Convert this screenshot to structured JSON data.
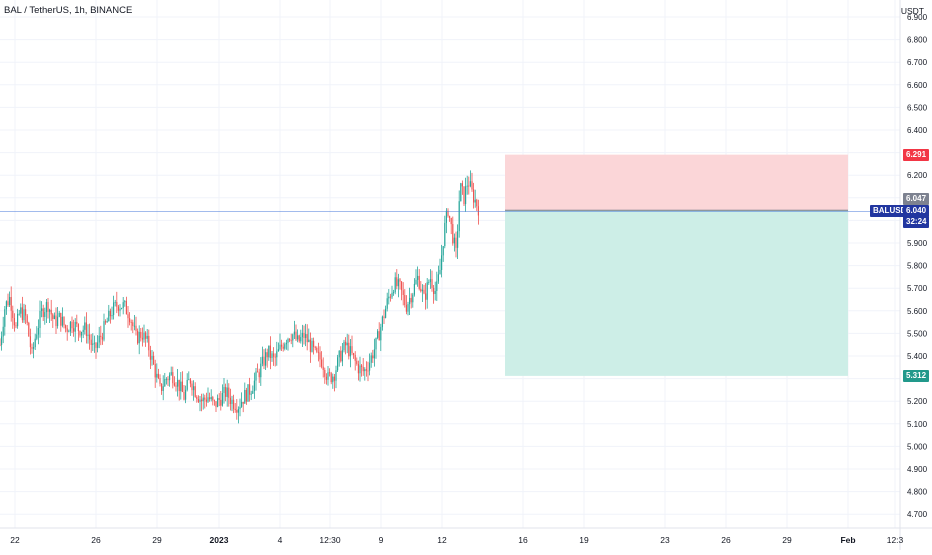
{
  "chart_data": {
    "type": "candlestick",
    "title": "BAL / TetherUS, 1h, BINANCE",
    "ylabel": "USDT",
    "ylim": [
      4.65,
      6.78
    ],
    "y_ticks": [
      "6.900",
      "6.800",
      "6.700",
      "6.600",
      "6.500",
      "6.400",
      "6.300",
      "6.200",
      "6.100",
      "6.000",
      "5.900",
      "5.800",
      "5.700",
      "5.600",
      "5.500",
      "5.400",
      "5.300",
      "5.200",
      "5.100",
      "5.000",
      "4.900",
      "4.800",
      "4.700"
    ],
    "x_ticks": [
      "22",
      "26",
      "29",
      "2023",
      "4",
      "12:30",
      "9",
      "12",
      "16",
      "19",
      "23",
      "26",
      "29",
      "Feb",
      "12:3"
    ],
    "grid": true,
    "price_path": [
      [
        0,
        5.45
      ],
      [
        5,
        5.62
      ],
      [
        10,
        5.66
      ],
      [
        16,
        5.52
      ],
      [
        20,
        5.6
      ],
      [
        26,
        5.57
      ],
      [
        32,
        5.4
      ],
      [
        36,
        5.5
      ],
      [
        42,
        5.6
      ],
      [
        48,
        5.63
      ],
      [
        54,
        5.55
      ],
      [
        60,
        5.57
      ],
      [
        66,
        5.52
      ],
      [
        72,
        5.55
      ],
      [
        78,
        5.52
      ],
      [
        86,
        5.52
      ],
      [
        94,
        5.42
      ],
      [
        100,
        5.48
      ],
      [
        106,
        5.54
      ],
      [
        112,
        5.6
      ],
      [
        118,
        5.63
      ],
      [
        124,
        5.62
      ],
      [
        130,
        5.58
      ],
      [
        136,
        5.48
      ],
      [
        142,
        5.5
      ],
      [
        148,
        5.45
      ],
      [
        154,
        5.35
      ],
      [
        160,
        5.25
      ],
      [
        166,
        5.3
      ],
      [
        172,
        5.32
      ],
      [
        178,
        5.28
      ],
      [
        184,
        5.22
      ],
      [
        190,
        5.3
      ],
      [
        196,
        5.24
      ],
      [
        202,
        5.2
      ],
      [
        208,
        5.22
      ],
      [
        214,
        5.18
      ],
      [
        220,
        5.21
      ],
      [
        226,
        5.24
      ],
      [
        232,
        5.2
      ],
      [
        238,
        5.18
      ],
      [
        244,
        5.22
      ],
      [
        250,
        5.25
      ],
      [
        256,
        5.3
      ],
      [
        262,
        5.36
      ],
      [
        268,
        5.42
      ],
      [
        274,
        5.38
      ],
      [
        280,
        5.43
      ],
      [
        286,
        5.48
      ],
      [
        292,
        5.5
      ],
      [
        298,
        5.46
      ],
      [
        304,
        5.49
      ],
      [
        310,
        5.45
      ],
      [
        316,
        5.4
      ],
      [
        322,
        5.38
      ],
      [
        328,
        5.3
      ],
      [
        334,
        5.32
      ],
      [
        340,
        5.4
      ],
      [
        346,
        5.45
      ],
      [
        352,
        5.4
      ],
      [
        358,
        5.35
      ],
      [
        364,
        5.33
      ],
      [
        370,
        5.38
      ],
      [
        376,
        5.45
      ],
      [
        382,
        5.55
      ],
      [
        388,
        5.65
      ],
      [
        394,
        5.72
      ],
      [
        400,
        5.7
      ],
      [
        406,
        5.62
      ],
      [
        412,
        5.68
      ],
      [
        418,
        5.75
      ],
      [
        424,
        5.65
      ],
      [
        430,
        5.75
      ],
      [
        436,
        5.68
      ],
      [
        440,
        5.78
      ],
      [
        444,
        5.95
      ],
      [
        448,
        6.05
      ],
      [
        452,
        5.95
      ],
      [
        456,
        5.85
      ],
      [
        460,
        6.15
      ],
      [
        464,
        6.1
      ],
      [
        468,
        6.18
      ],
      [
        472,
        6.12
      ],
      [
        476,
        6.08
      ],
      [
        480,
        6.04
      ]
    ],
    "last_price": "6.040",
    "last_price_prev": "6.047",
    "countdown": "32:24",
    "symbol_tag": "BALUSDT",
    "position": {
      "stop_loss": "6.291",
      "take_profit": "5.312",
      "entry": 6.045,
      "start_index_time": "15",
      "end_index_time": "Feb"
    },
    "colors": {
      "up": "#26a69a",
      "down": "#ef5350",
      "stop_fill": "#fbd6d8",
      "target_fill": "#cdeee7",
      "entry_line": "#787b86",
      "last_line": "#4f7fdc",
      "stop_tag": "#f23645",
      "target_tag": "#22998b",
      "symbol_tag": "#2136a0",
      "prev_tag": "#7d8290"
    }
  }
}
